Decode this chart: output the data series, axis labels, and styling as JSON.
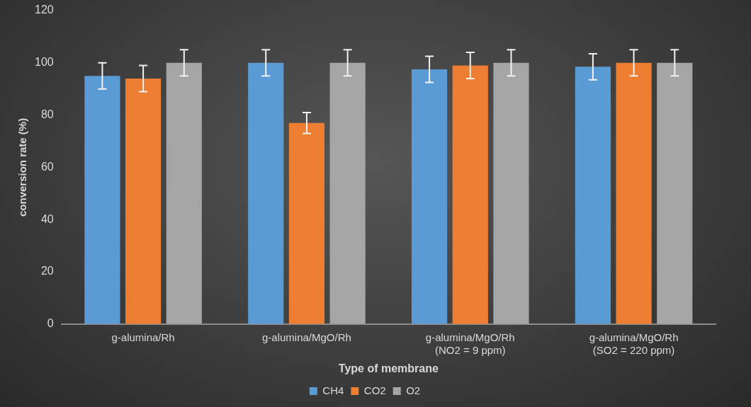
{
  "chart_data": {
    "type": "bar",
    "xlabel": "Type of membrane",
    "ylabel": "conversion rate (%)",
    "categories": [
      "g-alumina/Rh",
      "g-alumina/MgO/Rh",
      "g-alumina/MgO/Rh\n(NO2 = 9 ppm)",
      "g-alumina/MgO/Rh\n(SO2 = 220 ppm)"
    ],
    "series": [
      {
        "name": "CH4",
        "color": "#5b9bd5",
        "values": [
          95,
          100,
          97.5,
          98.5
        ],
        "errors": [
          5,
          5,
          5,
          5
        ]
      },
      {
        "name": "CO2",
        "color": "#ed7d31",
        "values": [
          94,
          77,
          99,
          100
        ],
        "errors": [
          5,
          4,
          5,
          5
        ]
      },
      {
        "name": "O2",
        "color": "#a5a5a5",
        "values": [
          100,
          100,
          100,
          100
        ],
        "errors": [
          5,
          5,
          5,
          5
        ]
      }
    ],
    "ylim": [
      0,
      120
    ],
    "yticks": [
      0,
      20,
      40,
      60,
      80,
      100,
      120
    ],
    "grid": false,
    "legend": "bottom"
  }
}
